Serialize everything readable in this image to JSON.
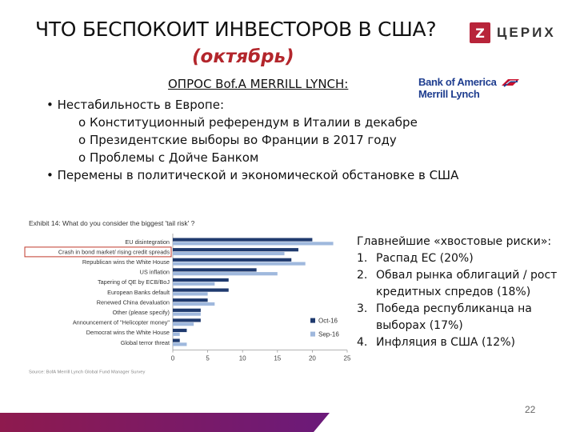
{
  "header": {
    "title": "ЧТО БЕСПОКОИТ ИНВЕСТОРОВ В США?",
    "subtitle": "(октябрь)",
    "logo_text": "ЦЕРИХ",
    "logo_mark": "Z"
  },
  "survey": {
    "label": "ОПРОС Bof.A MERRILL LYNCH:",
    "brand_line1": "Bank of America",
    "brand_line2": "Merrill Lynch"
  },
  "bullets": {
    "b1": "• Нестабильность в Европе:",
    "sub1": "o Конституционный референдум в Италии в декабре",
    "sub2": "o Президентские выборы во Франции в 2017 году",
    "sub3": "o Проблемы с Дойче Банком",
    "b2": "• Перемены в политической и экономической обстановке в США"
  },
  "right_list": {
    "heading": "Главнейшие «хвостовые риски»:",
    "items": [
      {
        "num": "1.",
        "text": "Распад ЕС (20%)"
      },
      {
        "num": "2.",
        "text": "Обвал рынка облигаций / рост кредитных спредов (18%)"
      },
      {
        "num": "3.",
        "text": "Победа республиканца на выборах (17%)"
      },
      {
        "num": "4.",
        "text": "Инфляция в США (12%)"
      }
    ]
  },
  "page_number": "22",
  "colors": {
    "oct": "#1f3a6e",
    "sep": "#9fb8dd",
    "title_accent": "#b3262c",
    "logo": "#b8243a",
    "highlight_box": "#c0392b",
    "band_left": "#8e1a4e",
    "band_right": "#6b1a7a"
  },
  "chart_data": {
    "type": "bar",
    "orientation": "horizontal",
    "title": "Exhibit 14: What do you consider the biggest 'tail risk' ?",
    "categories": [
      "EU disintegration",
      "Crash in bond market/ rising credit spreads",
      "Republican wins the White House",
      "US inflation",
      "Tapering of QE by ECB/BoJ",
      "European Banks default",
      "Renewed China devaluation",
      "Other (please specify)",
      "Announcement of \"Helicopter money\"",
      "Democrat wins the White House",
      "Global terror threat"
    ],
    "highlighted_category": "Crash in bond market/ rising credit spreads",
    "series": [
      {
        "name": "Oct-16",
        "values": [
          20,
          18,
          17,
          12,
          8,
          8,
          5,
          4,
          4,
          2,
          1
        ]
      },
      {
        "name": "Sep-16",
        "values": [
          23,
          16,
          19,
          15,
          6,
          5,
          6,
          4,
          3,
          1,
          2
        ]
      }
    ],
    "xlim": [
      0,
      25
    ],
    "xticks": [
      "0",
      "5",
      "10",
      "15",
      "20",
      "25"
    ],
    "legend_position": "bottom-right",
    "source": "Source: BofA Merrill Lynch Global Fund Manager Survey"
  }
}
